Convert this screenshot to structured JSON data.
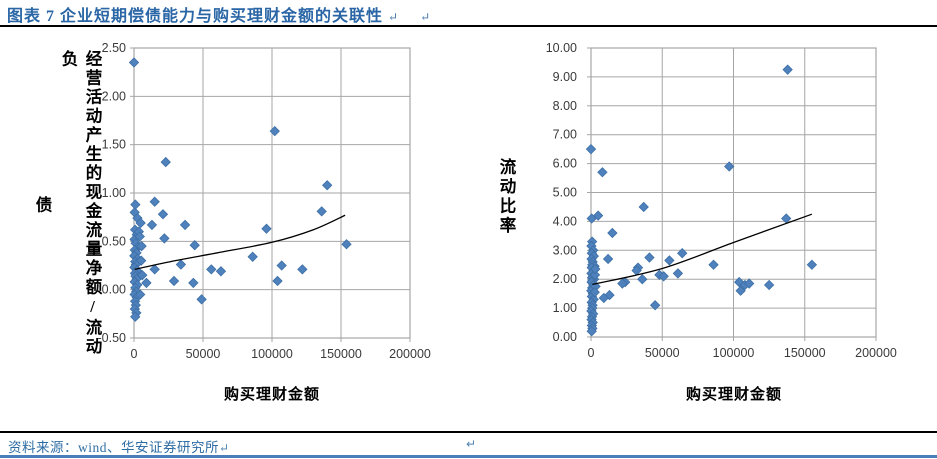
{
  "header": {
    "title": "图表 7  企业短期偿债能力与购买理财金额的关联性",
    "return_mark_1": "↵",
    "return_mark_2": "↵"
  },
  "footer": {
    "source_text": "资料来源：wind、华安证券研究所",
    "return_mark": "↵",
    "stray_return_mark": "↵"
  },
  "colors": {
    "title_blue": "#2A66A6",
    "source_blue": "#2E6DA4",
    "bottom_rule_blue": "#4A7EBB",
    "marker_fill": "#4F81BD",
    "marker_edge": "#3D6FA5",
    "gridline_gray": "#A6A6A6",
    "tick_text": "#3A3A3A",
    "trendline_black": "#000000"
  },
  "chart_data": [
    {
      "type": "scatter",
      "title": "",
      "xlabel": "购买理财金额",
      "ylabel": "经营活动产生的现金流量净额/流动负债",
      "ylabel_column_main": "经营活动产生的现金流量净额/流动负",
      "ylabel_column_wrap": "债",
      "xlim": [
        0,
        200000
      ],
      "ylim": [
        -0.5,
        2.5
      ],
      "xticks": [
        "0",
        "50000",
        "100000",
        "150000",
        "200000"
      ],
      "yticks": [
        "2.50",
        "2.00",
        "1.50",
        "1.00",
        "0.50",
        "0.00",
        "-0.50"
      ],
      "grid": true,
      "legend": false,
      "marker": "diamond",
      "points": [
        [
          0,
          2.35
        ],
        [
          23000,
          1.32
        ],
        [
          102000,
          1.64
        ],
        [
          140000,
          1.08
        ],
        [
          136000,
          0.81
        ],
        [
          154000,
          0.47
        ],
        [
          15000,
          0.91
        ],
        [
          1000,
          0.88
        ],
        [
          21000,
          0.78
        ],
        [
          13000,
          0.67
        ],
        [
          37000,
          0.67
        ],
        [
          22000,
          0.53
        ],
        [
          44000,
          0.46
        ],
        [
          96000,
          0.63
        ],
        [
          86000,
          0.34
        ],
        [
          34000,
          0.26
        ],
        [
          15000,
          0.21
        ],
        [
          56000,
          0.21
        ],
        [
          63000,
          0.19
        ],
        [
          107000,
          0.25
        ],
        [
          122000,
          0.21
        ],
        [
          104000,
          0.09
        ],
        [
          29000,
          0.09
        ],
        [
          43000,
          0.07
        ],
        [
          49000,
          -0.1
        ],
        [
          9000,
          0.07
        ],
        [
          500,
          0.8
        ],
        [
          2500,
          0.74
        ],
        [
          4800,
          0.69
        ],
        [
          800,
          0.62
        ],
        [
          2000,
          0.57
        ],
        [
          400,
          0.52
        ],
        [
          1200,
          0.48
        ],
        [
          3000,
          0.44
        ],
        [
          600,
          0.41
        ],
        [
          1800,
          0.38
        ],
        [
          200,
          0.35
        ],
        [
          2600,
          0.32
        ],
        [
          900,
          0.29
        ],
        [
          1400,
          0.26
        ],
        [
          300,
          0.23
        ],
        [
          2100,
          0.2
        ],
        [
          700,
          0.17
        ],
        [
          1100,
          0.14
        ],
        [
          1900,
          0.11
        ],
        [
          500,
          0.08
        ],
        [
          2400,
          0.05
        ],
        [
          1000,
          0.02
        ],
        [
          1600,
          -0.02
        ],
        [
          400,
          -0.05
        ],
        [
          2000,
          -0.08
        ],
        [
          800,
          -0.12
        ],
        [
          1300,
          -0.16
        ],
        [
          600,
          -0.2
        ],
        [
          1700,
          -0.24
        ],
        [
          900,
          -0.28
        ],
        [
          3500,
          0.6
        ],
        [
          4200,
          0.55
        ],
        [
          5200,
          0.3
        ],
        [
          6000,
          0.15
        ],
        [
          4500,
          -0.05
        ],
        [
          5500,
          0.45
        ]
      ],
      "trendline": [
        [
          500,
          0.21
        ],
        [
          30000,
          0.3
        ],
        [
          60000,
          0.38
        ],
        [
          100000,
          0.49
        ],
        [
          130000,
          0.62
        ],
        [
          153000,
          0.77
        ]
      ]
    },
    {
      "type": "scatter",
      "title": "",
      "xlabel": "购买理财金额",
      "ylabel": "流动比率",
      "xlim": [
        0,
        200000
      ],
      "ylim": [
        0,
        10
      ],
      "xticks": [
        "0",
        "50000",
        "100000",
        "150000",
        "200000"
      ],
      "yticks": [
        "10.00",
        "9.00",
        "8.00",
        "7.00",
        "6.00",
        "5.00",
        "4.00",
        "3.00",
        "2.00",
        "1.00",
        "0.00"
      ],
      "grid": true,
      "legend": false,
      "marker": "diamond",
      "points": [
        [
          138000,
          9.25
        ],
        [
          0,
          6.5
        ],
        [
          8000,
          5.7
        ],
        [
          97000,
          5.9
        ],
        [
          37000,
          4.5
        ],
        [
          500,
          4.1
        ],
        [
          5000,
          4.2
        ],
        [
          137000,
          4.1
        ],
        [
          155000,
          2.5
        ],
        [
          86000,
          2.5
        ],
        [
          15000,
          3.6
        ],
        [
          12000,
          2.7
        ],
        [
          41000,
          2.75
        ],
        [
          48000,
          2.15
        ],
        [
          33000,
          2.4
        ],
        [
          24000,
          1.9
        ],
        [
          13000,
          1.45
        ],
        [
          45000,
          1.1
        ],
        [
          55000,
          2.65
        ],
        [
          64000,
          2.9
        ],
        [
          51000,
          2.1
        ],
        [
          61000,
          2.2
        ],
        [
          36000,
          2.0
        ],
        [
          32000,
          2.3
        ],
        [
          104000,
          1.9
        ],
        [
          108000,
          1.8
        ],
        [
          111000,
          1.85
        ],
        [
          125000,
          1.8
        ],
        [
          105000,
          1.6
        ],
        [
          22000,
          1.85
        ],
        [
          9000,
          1.35
        ],
        [
          800,
          3.3
        ],
        [
          300,
          3.15
        ],
        [
          1500,
          3.0
        ],
        [
          600,
          2.9
        ],
        [
          2000,
          2.8
        ],
        [
          400,
          2.7
        ],
        [
          1200,
          2.6
        ],
        [
          900,
          2.5
        ],
        [
          2500,
          2.45
        ],
        [
          500,
          2.4
        ],
        [
          1800,
          2.3
        ],
        [
          300,
          2.2
        ],
        [
          1400,
          2.1
        ],
        [
          700,
          2.05
        ],
        [
          2200,
          2.0
        ],
        [
          1000,
          1.95
        ],
        [
          400,
          1.9
        ],
        [
          1600,
          1.8
        ],
        [
          800,
          1.7
        ],
        [
          200,
          1.6
        ],
        [
          1300,
          1.5
        ],
        [
          600,
          1.4
        ],
        [
          1900,
          1.3
        ],
        [
          500,
          1.2
        ],
        [
          1100,
          1.1
        ],
        [
          900,
          1.0
        ],
        [
          300,
          0.9
        ],
        [
          1500,
          0.8
        ],
        [
          700,
          0.7
        ],
        [
          400,
          0.6
        ],
        [
          1200,
          0.5
        ],
        [
          600,
          0.4
        ],
        [
          1000,
          0.3
        ],
        [
          500,
          0.2
        ],
        [
          2800,
          2.15
        ],
        [
          3200,
          1.75
        ],
        [
          2600,
          1.55
        ],
        [
          3000,
          2.35
        ]
      ],
      "trendline": [
        [
          1000,
          1.82
        ],
        [
          50000,
          2.37
        ],
        [
          100000,
          3.27
        ],
        [
          155000,
          4.25
        ]
      ]
    }
  ]
}
